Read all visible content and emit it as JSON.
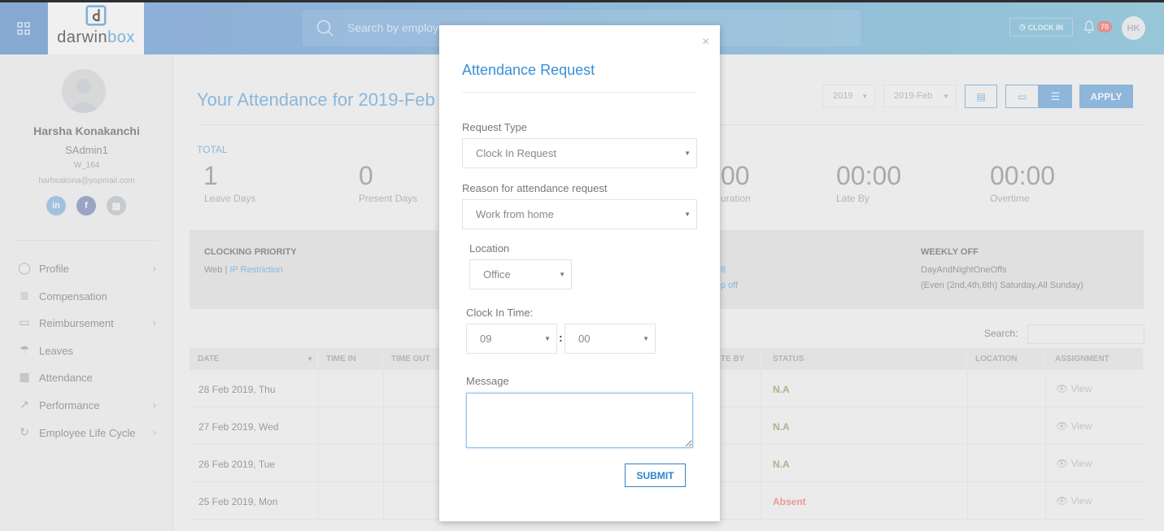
{
  "header": {
    "brand": "darwinbox",
    "brand_first": "darwin",
    "brand_second": "box",
    "search_placeholder": "Search by employee",
    "clock_in_label": "CLOCK IN",
    "notification_count": "70",
    "user_initials": "HK"
  },
  "profile": {
    "name": "Harsha Konakanchi",
    "role": "SAdmin1",
    "employee_id": "W_164",
    "email": "harhsakona@yopmail.com"
  },
  "sidebar": {
    "items": [
      {
        "label": "Profile",
        "icon": "user-circle-icon",
        "has_submenu": true
      },
      {
        "label": "Compensation",
        "icon": "coins-icon",
        "has_submenu": false
      },
      {
        "label": "Reimbursement",
        "icon": "wallet-icon",
        "has_submenu": true
      },
      {
        "label": "Leaves",
        "icon": "beach-umbrella-icon",
        "has_submenu": false
      },
      {
        "label": "Attendance",
        "icon": "calendar-check-icon",
        "has_submenu": false
      },
      {
        "label": "Performance",
        "icon": "chart-growth-icon",
        "has_submenu": true
      },
      {
        "label": "Employee Life Cycle",
        "icon": "lifecycle-icon",
        "has_submenu": true
      }
    ]
  },
  "main": {
    "title": "Your Attendance for 2019-Feb",
    "year_select": "2019",
    "month_select": "2019-Feb",
    "apply_label": "APPLY",
    "total_label": "TOTAL",
    "stats": [
      {
        "value": "1",
        "label": "Leave Days"
      },
      {
        "value": "0",
        "label": "Present Days"
      },
      {
        "value": "00",
        "label": "uration"
      },
      {
        "value": "00:00",
        "label": "Late By"
      },
      {
        "value": "00:00",
        "label": "Overtime"
      }
    ],
    "info": {
      "clocking_priority_title": "CLOCKING PRIORITY",
      "clocking_priority_web": "Web |",
      "clocking_priority_link": "IP Restriction",
      "middle_line1": "8",
      "middle_line2": "p off",
      "weekly_off_title": "WEEKLY OFF",
      "weekly_off_name": "DayAndNightOneOffs",
      "weekly_off_detail": "(Even (2nd,4th,6th) Saturday,All Sunday)"
    },
    "table": {
      "search_label": "Search:",
      "headers": {
        "date": "DATE",
        "time_in": "TIME IN",
        "time_out": "TIME OUT",
        "partial": "TE BY",
        "status": "STATUS",
        "location": "LOCATION",
        "assignment": "ASSIGNMENT"
      },
      "rows": [
        {
          "date": "28 Feb 2019, Thu",
          "status": "N.A",
          "assignment": "View"
        },
        {
          "date": "27 Feb 2019, Wed",
          "status": "N.A",
          "assignment": "View"
        },
        {
          "date": "26 Feb 2019, Tue",
          "status": "N.A",
          "assignment": "View"
        },
        {
          "date": "25 Feb 2019, Mon",
          "status": "Absent",
          "assignment": "View"
        }
      ]
    }
  },
  "modal": {
    "title": "Attendance Request",
    "close": "×",
    "request_type_label": "Request Type",
    "request_type_value": "Clock In Request",
    "reason_label": "Reason for attendance request",
    "reason_value": "Work from home",
    "location_label": "Location",
    "location_value": "Office",
    "clock_in_label": "Clock In Time:",
    "hour_value": "09",
    "minute_value": "00",
    "separator": ":",
    "message_label": "Message",
    "message_value": "",
    "submit_label": "SUBMIT"
  },
  "colors": {
    "accent": "#3a8fd6",
    "status_na": "#a9b58a",
    "status_absent": "#e69a94",
    "header_start": "#8cacd8",
    "header_end": "#96c6d8"
  }
}
